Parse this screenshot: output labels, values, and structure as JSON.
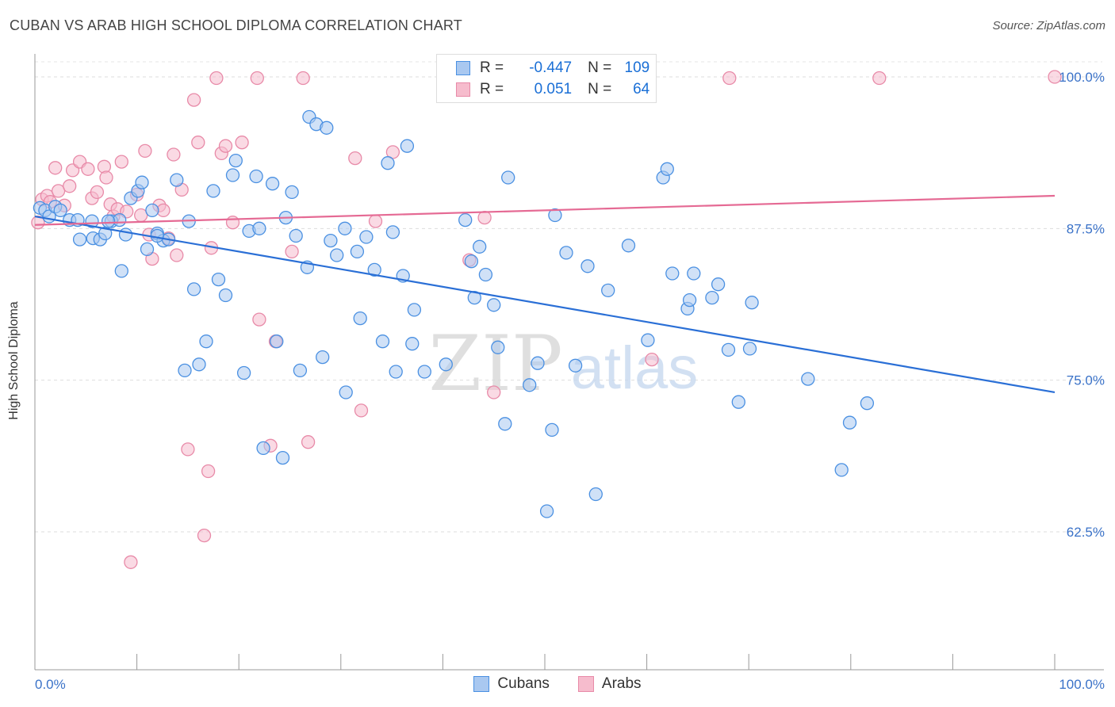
{
  "title": "CUBAN VS ARAB HIGH SCHOOL DIPLOMA CORRELATION CHART",
  "source": "Source: ZipAtlas.com",
  "watermark": {
    "zip": "ZIP",
    "atlas": "atlas"
  },
  "colors": {
    "cubans": "#4a90e2",
    "cubans_fill": "#a9c8f0",
    "cubans_line": "#2a6fd6",
    "arabs": "#e88aa8",
    "arabs_fill": "#f6bccd",
    "arabs_line": "#e56a94",
    "axis_text": "#3a72c8"
  },
  "legend_top": {
    "rows": [
      {
        "r_label": "R =",
        "r_value": "-0.447",
        "n_label": "N =",
        "n_value": "109"
      },
      {
        "r_label": "R =",
        "r_value": "0.051",
        "n_label": "N =",
        "n_value": "64"
      }
    ]
  },
  "legend_bottom": [
    "Cubans",
    "Arabs"
  ],
  "chart_data": {
    "type": "scatter",
    "title": "CUBAN VS ARAB HIGH SCHOOL DIPLOMA CORRELATION CHART",
    "xlabel": "",
    "ylabel": "High School Diploma",
    "xlim": [
      0,
      100
    ],
    "ylim": [
      52,
      101
    ],
    "x_tick_labels": [
      "0.0%",
      "100.0%"
    ],
    "y_ticks": [
      62.5,
      75.0,
      87.5,
      100.0
    ],
    "y_tick_labels": [
      "62.5%",
      "75.0%",
      "87.5%",
      "100.0%"
    ],
    "grid": true,
    "legend_placement": "bottom-center",
    "series": [
      {
        "name": "Cubans",
        "r": -0.447,
        "n": 109,
        "trend": {
          "x": [
            0,
            100
          ],
          "y": [
            88.5,
            74.0
          ]
        },
        "points": [
          [
            0.5,
            89.2
          ],
          [
            1.0,
            89.0
          ],
          [
            1.4,
            88.5
          ],
          [
            2.0,
            89.3
          ],
          [
            2.5,
            89.0
          ],
          [
            3.4,
            88.2
          ],
          [
            4.2,
            88.2
          ],
          [
            4.4,
            86.6
          ],
          [
            5.6,
            88.1
          ],
          [
            5.7,
            86.7
          ],
          [
            6.4,
            86.6
          ],
          [
            6.9,
            87.1
          ],
          [
            7.5,
            88.1
          ],
          [
            8.3,
            88.2
          ],
          [
            8.5,
            84.0
          ],
          [
            8.9,
            87.0
          ],
          [
            9.4,
            90.0
          ],
          [
            10.1,
            90.6
          ],
          [
            10.5,
            91.3
          ],
          [
            11.0,
            85.8
          ],
          [
            11.5,
            89.0
          ],
          [
            12.0,
            87.1
          ],
          [
            12.6,
            86.5
          ],
          [
            13.1,
            86.6
          ],
          [
            13.9,
            91.5
          ],
          [
            14.7,
            75.8
          ],
          [
            15.1,
            88.1
          ],
          [
            15.6,
            82.5
          ],
          [
            16.1,
            76.3
          ],
          [
            16.8,
            78.2
          ],
          [
            17.5,
            90.6
          ],
          [
            18.0,
            83.3
          ],
          [
            18.7,
            82.0
          ],
          [
            19.4,
            91.9
          ],
          [
            19.7,
            93.1
          ],
          [
            20.5,
            75.6
          ],
          [
            21.0,
            87.3
          ],
          [
            21.7,
            91.8
          ],
          [
            22.0,
            87.5
          ],
          [
            22.4,
            69.4
          ],
          [
            23.3,
            91.2
          ],
          [
            23.7,
            78.2
          ],
          [
            24.3,
            68.6
          ],
          [
            24.6,
            88.4
          ],
          [
            25.2,
            90.5
          ],
          [
            25.6,
            86.9
          ],
          [
            26.0,
            75.8
          ],
          [
            26.7,
            84.3
          ],
          [
            26.9,
            96.7
          ],
          [
            27.6,
            96.1
          ],
          [
            28.2,
            76.9
          ],
          [
            28.6,
            95.8
          ],
          [
            29.0,
            86.5
          ],
          [
            29.6,
            85.3
          ],
          [
            30.4,
            87.5
          ],
          [
            31.6,
            85.6
          ],
          [
            31.9,
            80.1
          ],
          [
            32.5,
            86.8
          ],
          [
            33.3,
            84.1
          ],
          [
            34.1,
            78.2
          ],
          [
            34.6,
            92.9
          ],
          [
            35.1,
            87.2
          ],
          [
            35.4,
            75.7
          ],
          [
            36.1,
            83.6
          ],
          [
            36.5,
            94.3
          ],
          [
            37.2,
            80.8
          ],
          [
            38.2,
            75.7
          ],
          [
            40.3,
            76.3
          ],
          [
            42.2,
            88.2
          ],
          [
            42.8,
            84.8
          ],
          [
            43.1,
            81.8
          ],
          [
            43.6,
            86.0
          ],
          [
            44.2,
            83.7
          ],
          [
            45.0,
            81.2
          ],
          [
            45.4,
            77.7
          ],
          [
            46.1,
            71.4
          ],
          [
            46.4,
            91.7
          ],
          [
            48.5,
            74.6
          ],
          [
            49.3,
            76.4
          ],
          [
            50.2,
            64.2
          ],
          [
            50.7,
            70.9
          ],
          [
            51.0,
            88.6
          ],
          [
            52.1,
            85.5
          ],
          [
            53.0,
            76.2
          ],
          [
            54.2,
            84.4
          ],
          [
            55.0,
            65.6
          ],
          [
            56.2,
            82.4
          ],
          [
            58.2,
            86.1
          ],
          [
            60.1,
            78.3
          ],
          [
            61.6,
            91.7
          ],
          [
            62.0,
            92.4
          ],
          [
            62.5,
            83.8
          ],
          [
            64.0,
            80.9
          ],
          [
            64.2,
            81.6
          ],
          [
            64.6,
            83.8
          ],
          [
            66.4,
            81.8
          ],
          [
            67.0,
            82.9
          ],
          [
            68.0,
            77.5
          ],
          [
            69.0,
            73.2
          ],
          [
            70.1,
            77.6
          ],
          [
            70.3,
            81.4
          ],
          [
            75.8,
            75.1
          ],
          [
            79.1,
            67.6
          ],
          [
            79.9,
            71.5
          ],
          [
            81.6,
            73.1
          ],
          [
            12.0,
            86.9
          ],
          [
            7.2,
            88.1
          ],
          [
            30.5,
            74.0
          ],
          [
            37.0,
            78.0
          ]
        ]
      },
      {
        "name": "Arabs",
        "r": 0.051,
        "n": 64,
        "trend": {
          "x": [
            0,
            100
          ],
          "y": [
            87.8,
            90.2
          ]
        },
        "points": [
          [
            0.3,
            88.0
          ],
          [
            0.7,
            89.9
          ],
          [
            1.2,
            90.2
          ],
          [
            1.5,
            89.7
          ],
          [
            2.0,
            92.5
          ],
          [
            2.3,
            90.6
          ],
          [
            2.9,
            89.4
          ],
          [
            3.4,
            91.0
          ],
          [
            3.7,
            92.3
          ],
          [
            4.4,
            93.0
          ],
          [
            5.2,
            92.4
          ],
          [
            5.6,
            90.0
          ],
          [
            6.1,
            90.5
          ],
          [
            6.8,
            92.6
          ],
          [
            7.0,
            91.7
          ],
          [
            7.4,
            89.5
          ],
          [
            7.7,
            88.5
          ],
          [
            8.1,
            89.1
          ],
          [
            8.5,
            93.0
          ],
          [
            9.0,
            88.9
          ],
          [
            9.4,
            60.0
          ],
          [
            10.0,
            90.3
          ],
          [
            10.4,
            88.6
          ],
          [
            10.8,
            93.9
          ],
          [
            11.2,
            87.0
          ],
          [
            11.5,
            85.0
          ],
          [
            12.2,
            89.4
          ],
          [
            12.6,
            89.0
          ],
          [
            13.1,
            86.7
          ],
          [
            13.6,
            93.6
          ],
          [
            13.9,
            85.3
          ],
          [
            14.4,
            90.7
          ],
          [
            15.0,
            69.3
          ],
          [
            15.6,
            98.1
          ],
          [
            16.0,
            94.6
          ],
          [
            16.6,
            62.2
          ],
          [
            17.0,
            67.5
          ],
          [
            17.3,
            85.9
          ],
          [
            17.8,
            99.9
          ],
          [
            18.3,
            93.7
          ],
          [
            18.7,
            94.3
          ],
          [
            19.4,
            88.0
          ],
          [
            20.3,
            94.6
          ],
          [
            21.8,
            99.9
          ],
          [
            22.0,
            80.0
          ],
          [
            23.1,
            69.6
          ],
          [
            23.6,
            78.2
          ],
          [
            25.2,
            85.6
          ],
          [
            26.3,
            99.9
          ],
          [
            26.8,
            69.9
          ],
          [
            31.4,
            93.3
          ],
          [
            32.0,
            72.5
          ],
          [
            33.4,
            88.1
          ],
          [
            35.1,
            93.8
          ],
          [
            42.6,
            84.9
          ],
          [
            43.2,
            99.9
          ],
          [
            44.1,
            88.4
          ],
          [
            45.0,
            74.0
          ],
          [
            46.2,
            99.9
          ],
          [
            48.0,
            100.0
          ],
          [
            60.5,
            76.7
          ],
          [
            68.1,
            99.9
          ],
          [
            82.8,
            99.9
          ],
          [
            100.0,
            100.0
          ]
        ]
      }
    ]
  }
}
